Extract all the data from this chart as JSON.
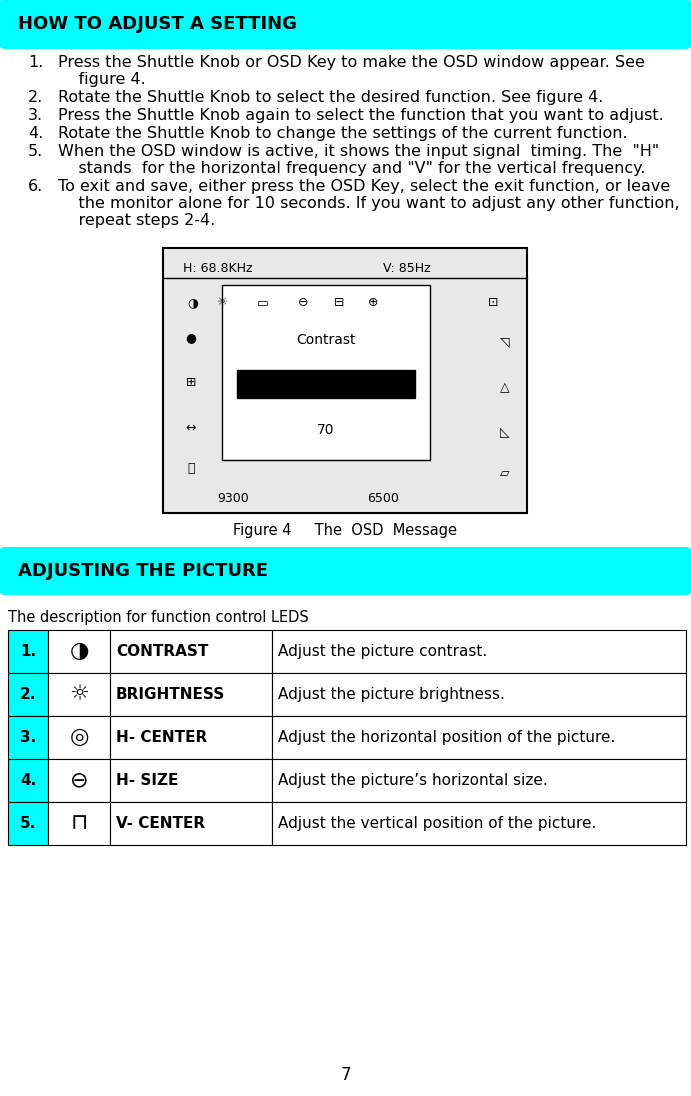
{
  "bg_color": "#ffffff",
  "header1_text": "HOW TO ADJUST A SETTING",
  "header1_bg": "#00FFFF",
  "header2_text": "ADJUSTING THE PICTURE",
  "header2_bg": "#00FFFF",
  "body_items": [
    {
      "num": "1.",
      "text": "Press the Shuttle Knob or OSD Key to make the OSD window appear. See\n    figure 4."
    },
    {
      "num": "2.",
      "text": "Rotate the Shuttle Knob to select the desired function. See figure 4."
    },
    {
      "num": "3.",
      "text": "Press the Shuttle Knob again to select the function that you want to adjust."
    },
    {
      "num": "4.",
      "text": "Rotate the Shuttle Knob to change the settings of the current function."
    },
    {
      "num": "5.",
      "text": "When the OSD window is active, it shows the input signal  timing. The  \"H\"\n    stands  for the horizontal frequency and \"V\" for the vertical frequency."
    },
    {
      "num": "6.",
      "text": "To exit and save, either press the OSD Key, select the exit function, or leave\n    the monitor alone for 10 seconds. If you want to adjust any other function,\n    repeat steps 2-4."
    }
  ],
  "osd_h_label": "H: 68.8KHz",
  "osd_v_label": "V: 85Hz",
  "osd_contrast_label": "Contrast",
  "osd_bar_value": "70",
  "osd_bar_color": "#000000",
  "osd_9300": "9300",
  "osd_6500": "6500",
  "figure_caption": "Figure 4     The  OSD  Message",
  "table_desc": "The description for function control LEDS",
  "table_rows": [
    {
      "num": "1.",
      "label": "CONTRAST",
      "desc": "Adjust the picture contrast."
    },
    {
      "num": "2.",
      "label": "BRIGHTNESS",
      "desc": "Adjust the picture brightness."
    },
    {
      "num": "3.",
      "label": "H- CENTER",
      "desc": "Adjust the horizontal position of the picture."
    },
    {
      "num": "4.",
      "label": "H- SIZE",
      "desc": "Adjust the picture’s horizontal size."
    },
    {
      "num": "5.",
      "label": "V- CENTER",
      "desc": "Adjust the vertical position of the picture."
    }
  ],
  "page_num": "7"
}
